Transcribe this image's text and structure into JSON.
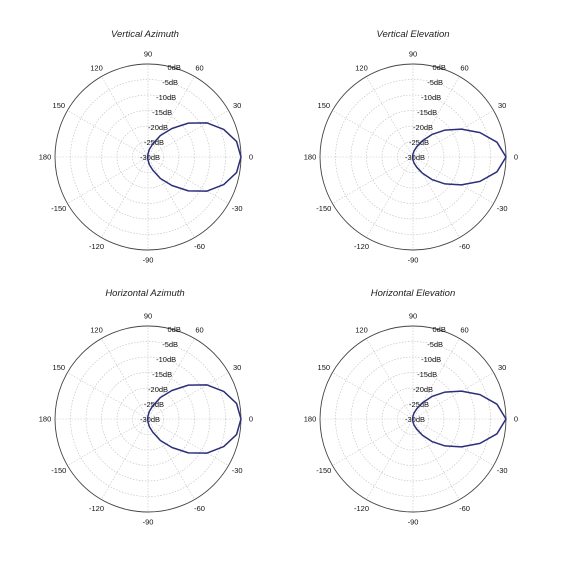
{
  "chart_data": [
    {
      "type": "polar",
      "title": "Vertical Azimuth",
      "r_unit": "dB",
      "r_range": [
        -30,
        0
      ],
      "r_ticks": [
        "0dB",
        "-5dB",
        "-10dB",
        "-15dB",
        "-20dB",
        "-25dB",
        "-30dB"
      ],
      "angle_ticks": [
        "0",
        "30",
        "60",
        "90",
        "120",
        "150",
        "180",
        "-150",
        "-120",
        "-90",
        "-60",
        "-30"
      ],
      "grid": true,
      "series": [
        {
          "color": "#2b2f7a",
          "angle_deg": [
            0,
            10,
            20,
            30,
            40,
            50,
            60,
            70,
            80,
            90,
            100,
            110,
            120,
            130,
            140,
            150,
            160,
            170,
            180
          ],
          "gain_db": [
            0,
            -1,
            -4,
            -8,
            -13,
            -18,
            -22,
            -25.5,
            -27.5,
            -29,
            -29.5,
            -30,
            -30,
            -30,
            -30,
            -30,
            -30,
            -30,
            -30
          ]
        }
      ]
    },
    {
      "type": "polar",
      "title": "Vertical Elevation",
      "r_unit": "dB",
      "r_range": [
        -30,
        0
      ],
      "r_ticks": [
        "0dB",
        "-5dB",
        "-10dB",
        "-15dB",
        "-20dB",
        "-25dB",
        "-30dB"
      ],
      "angle_ticks": [
        "0",
        "30",
        "60",
        "90",
        "120",
        "150",
        "180",
        "-150",
        "-120",
        "-90",
        "-60",
        "-30"
      ],
      "grid": true,
      "series": [
        {
          "color": "#2b2f7a",
          "angle_deg": [
            0,
            10,
            20,
            30,
            40,
            50,
            60,
            70,
            80,
            90,
            100,
            110,
            120,
            130,
            140,
            150,
            160,
            170,
            180
          ],
          "gain_db": [
            0,
            -2.5,
            -7,
            -12,
            -16.5,
            -20.5,
            -24,
            -26.5,
            -28,
            -29,
            -29.5,
            -30,
            -30,
            -30,
            -30,
            -30,
            -30,
            -30,
            -30
          ]
        }
      ]
    },
    {
      "type": "polar",
      "title": "Horizontal Azimuth",
      "r_unit": "dB",
      "r_range": [
        -30,
        0
      ],
      "r_ticks": [
        "0dB",
        "-5dB",
        "-10dB",
        "-15dB",
        "-20dB",
        "-25dB",
        "-30dB"
      ],
      "angle_ticks": [
        "0",
        "30",
        "60",
        "90",
        "120",
        "150",
        "180",
        "-150",
        "-120",
        "-90",
        "-60",
        "-30"
      ],
      "grid": true,
      "series": [
        {
          "color": "#2b2f7a",
          "angle_deg": [
            0,
            10,
            20,
            30,
            40,
            50,
            60,
            70,
            80,
            90,
            100,
            110,
            120,
            130,
            140,
            150,
            160,
            170,
            180
          ],
          "gain_db": [
            0,
            -1,
            -4,
            -8,
            -13,
            -18,
            -22,
            -25.5,
            -27.5,
            -29,
            -29.5,
            -30,
            -30,
            -30,
            -30,
            -30,
            -30,
            -30,
            -30
          ]
        }
      ]
    },
    {
      "type": "polar",
      "title": "Horizontal Elevation",
      "r_unit": "dB",
      "r_range": [
        -30,
        0
      ],
      "r_ticks": [
        "0dB",
        "-5dB",
        "-10dB",
        "-15dB",
        "-20dB",
        "-25dB",
        "-30dB"
      ],
      "angle_ticks": [
        "0",
        "30",
        "60",
        "90",
        "120",
        "150",
        "180",
        "-150",
        "-120",
        "-90",
        "-60",
        "-30"
      ],
      "grid": true,
      "series": [
        {
          "color": "#2b2f7a",
          "angle_deg": [
            0,
            10,
            20,
            30,
            40,
            50,
            60,
            70,
            80,
            90,
            100,
            110,
            120,
            130,
            140,
            150,
            160,
            170,
            180
          ],
          "gain_db": [
            0,
            -2.5,
            -7,
            -12,
            -16.5,
            -20.5,
            -24,
            -26.5,
            -28,
            -29,
            -29.5,
            -30,
            -30,
            -30,
            -30,
            -30,
            -30,
            -30,
            -30
          ]
        }
      ]
    }
  ]
}
